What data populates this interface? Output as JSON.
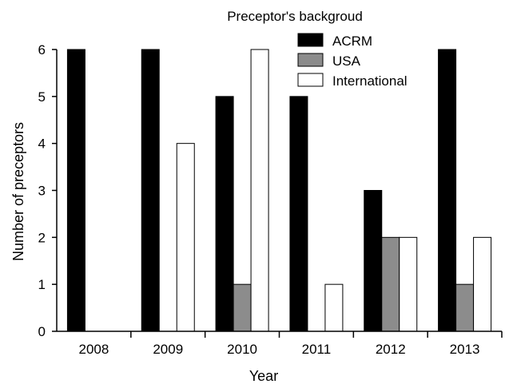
{
  "chart_data": {
    "type": "bar",
    "title": "Preceptor's backgroud",
    "xlabel": "Year",
    "ylabel": "Number of preceptors",
    "categories": [
      "2008",
      "2009",
      "2010",
      "2011",
      "2012",
      "2013"
    ],
    "series": [
      {
        "name": "ACRM",
        "color": "#000000",
        "values": [
          6,
          6,
          5,
          5,
          3,
          6
        ]
      },
      {
        "name": "USA",
        "color": "#8c8c8c",
        "values": [
          0,
          0,
          1,
          0,
          2,
          1
        ]
      },
      {
        "name": "International",
        "color": "#ffffff",
        "values": [
          0,
          4,
          6,
          1,
          2,
          2
        ]
      }
    ],
    "ylim": [
      0,
      6
    ],
    "yticks": [
      0,
      1,
      2,
      3,
      4,
      5,
      6
    ],
    "grid": false,
    "legend_position": "top-right"
  }
}
